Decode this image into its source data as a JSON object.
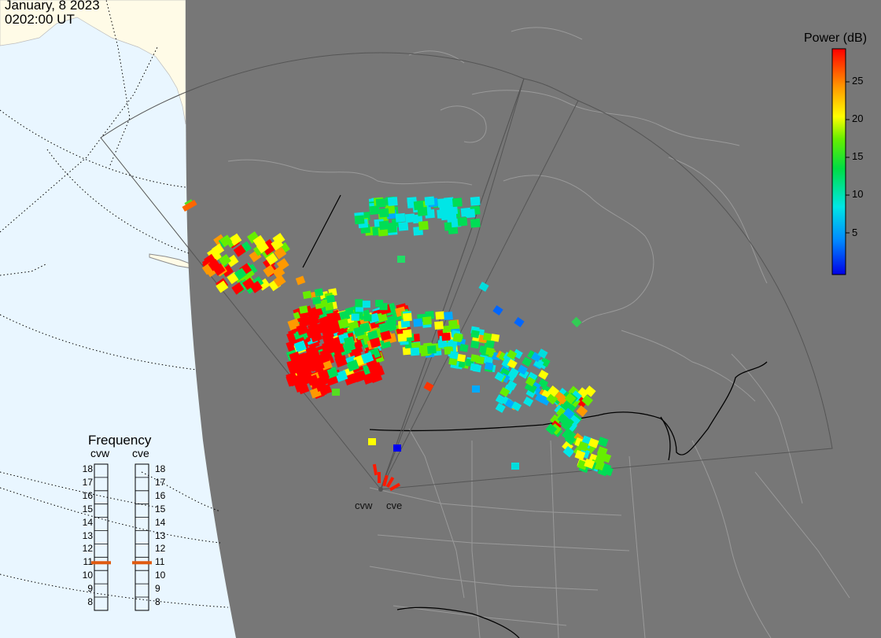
{
  "timestamp": {
    "date": "January, 8 2023",
    "time": "0202:00 UT"
  },
  "legend": {
    "title": "Power (dB)",
    "ticks": [
      "25",
      "20",
      "15",
      "10",
      "5"
    ],
    "scale_range": [
      0,
      29
    ],
    "colors": [
      "#0000e8",
      "#00aaff",
      "#00e6e6",
      "#00dd55",
      "#66ee00",
      "#ffff00",
      "#ff9900",
      "#ff0000"
    ]
  },
  "frequency_panel": {
    "title": "Frequency",
    "radars": [
      "cvw",
      "cve"
    ],
    "scale": [
      "18",
      "17",
      "16",
      "15",
      "14",
      "13",
      "12",
      "11",
      "10",
      "9",
      "8"
    ],
    "cvw_mhz": 11,
    "cve_mhz": 11,
    "marker_color": "#e05a10"
  },
  "sites": {
    "cvw": "cvw",
    "cve": "cve"
  },
  "colors": {
    "night": "#777777",
    "ocean_day": "#e9f6ff",
    "land_day": "#fffbe7",
    "boundary": "#9a9a9a",
    "fov": "#555555"
  }
}
